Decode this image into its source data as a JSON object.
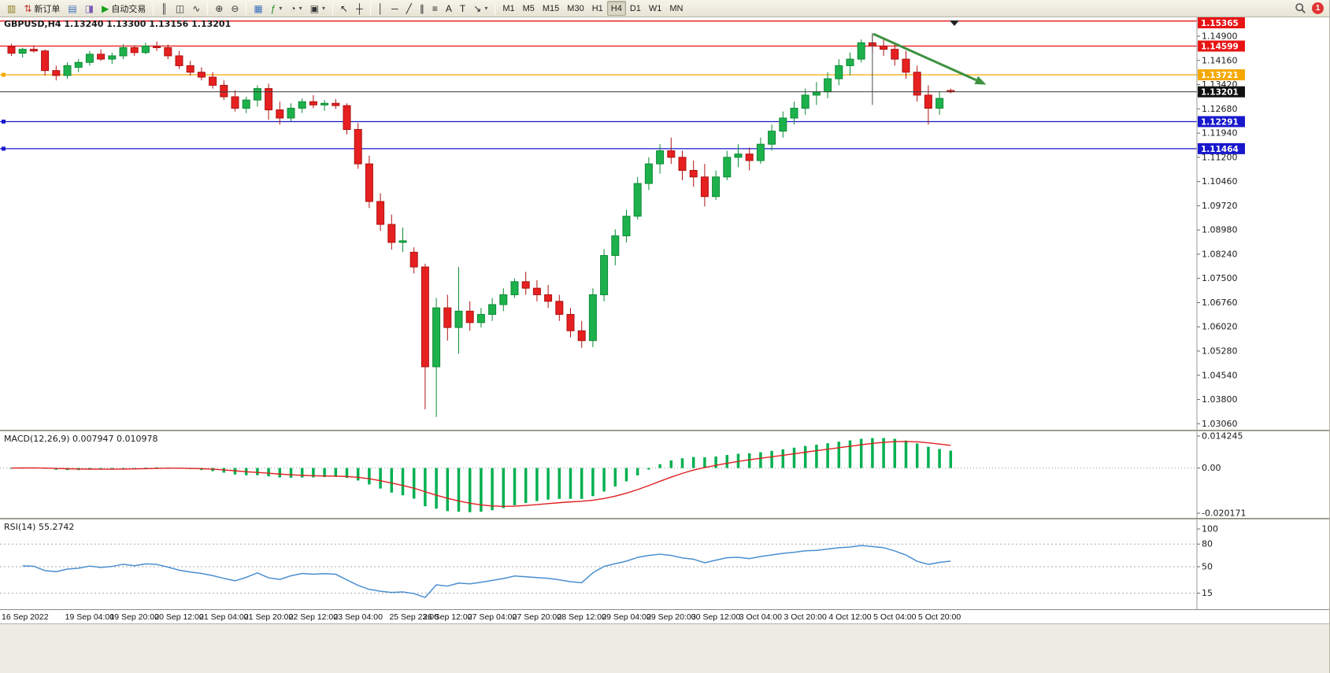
{
  "colors": {
    "candle_up": "#1db14c",
    "candle_up_border": "#0e8a36",
    "candle_down": "#e62020",
    "candle_down_border": "#b01212",
    "hline_red": "#e81414",
    "hline_orange": "#f5a800",
    "hline_blue": "#1818cc",
    "current_price_line": "#3c3c3c",
    "current_price_badge": "#111111",
    "macd_histogram": "#00b050",
    "macd_signal": "#e02020",
    "rsi_line": "#4a8fd0",
    "annotation_arrow": "#3d9140",
    "axis_text": "#1a1a1a"
  },
  "toolbar": {
    "notification_count": "1",
    "groups": [
      {
        "items": [
          {
            "name": "new-chart-button",
            "glyph": "▥",
            "color": "#8f7a1e"
          },
          {
            "name": "new-order-button",
            "glyph": "⇅",
            "color": "#c03030",
            "label": "新订单"
          },
          {
            "name": "profiles-button",
            "glyph": "▤",
            "color": "#3a6fbf"
          },
          {
            "name": "data-window-button",
            "glyph": "◨",
            "color": "#7a5ab0"
          },
          {
            "name": "autotrading-button",
            "glyph": "▶",
            "color": "#18a018",
            "label": "自动交易"
          }
        ]
      },
      {
        "items": [
          {
            "name": "bar-chart-button",
            "glyph": "║",
            "color": "#333333"
          },
          {
            "name": "candlestick-chart-button",
            "glyph": "◫",
            "color": "#333333"
          },
          {
            "name": "line-chart-button",
            "glyph": "∿",
            "color": "#333333"
          }
        ]
      },
      {
        "items": [
          {
            "name": "zoom-in-button",
            "glyph": "⊕",
            "color": "#333333"
          },
          {
            "name": "zoom-out-button",
            "glyph": "⊖",
            "color": "#333333"
          }
        ]
      },
      {
        "items": [
          {
            "name": "tile-windows-button",
            "glyph": "▦",
            "color": "#3a6fbf"
          },
          {
            "name": "indicators-button",
            "glyph": "ƒ",
            "color": "#1a8a1a",
            "caret": true
          },
          {
            "name": "periods-button",
            "glyph": "◔",
            "color": "#333333",
            "caret": true
          },
          {
            "name": "templates-button",
            "glyph": "▣",
            "color": "#333333",
            "caret": true
          }
        ]
      },
      {
        "items": [
          {
            "name": "cursor-button",
            "glyph": "↖",
            "color": "#222222"
          },
          {
            "name": "crosshair-button",
            "glyph": "┼",
            "color": "#222222"
          }
        ]
      },
      {
        "items": [
          {
            "name": "vertical-line-button",
            "glyph": "│",
            "color": "#222222"
          },
          {
            "name": "horizontal-line-button",
            "glyph": "─",
            "color": "#222222"
          },
          {
            "name": "trendline-button",
            "glyph": "╱",
            "color": "#222222"
          },
          {
            "name": "equidistant-channel-button",
            "glyph": "∥",
            "color": "#222222"
          },
          {
            "name": "fibonacci-button",
            "glyph": "≡",
            "color": "#222222"
          },
          {
            "name": "text-button",
            "glyph": "A",
            "color": "#222222"
          },
          {
            "name": "text-label-button",
            "glyph": "T",
            "color": "#222222"
          },
          {
            "name": "arrows-button",
            "glyph": "↘",
            "color": "#222222",
            "caret": true
          }
        ]
      },
      {
        "items": [
          {
            "name": "timeframe-m1-button",
            "label": "M1"
          },
          {
            "name": "timeframe-m5-button",
            "label": "M5"
          },
          {
            "name": "timeframe-m15-button",
            "label": "M15"
          },
          {
            "name": "timeframe-m30-button",
            "label": "M30"
          },
          {
            "name": "timeframe-h1-button",
            "label": "H1"
          },
          {
            "name": "timeframe-h4-button",
            "label": "H4",
            "active": true
          },
          {
            "name": "timeframe-d1-button",
            "label": "D1"
          },
          {
            "name": "timeframe-w1-button",
            "label": "W1"
          },
          {
            "name": "timeframe-mn-button",
            "label": "MN"
          }
        ]
      }
    ]
  },
  "chart": {
    "objects": {
      "horizontal_lines": [
        {
          "label": "1.15365",
          "price": 1.15365,
          "color_key": "hline_red"
        },
        {
          "label": "1.14599",
          "price": 1.14599,
          "color_key": "hline_red"
        },
        {
          "label": "1.13721",
          "price": 1.13721,
          "color_key": "hline_orange",
          "handle": true
        },
        {
          "label": "1.12291",
          "price": 1.12291,
          "color_key": "hline_blue",
          "handle": true
        },
        {
          "label": "1.11464",
          "price": 1.11464,
          "color_key": "hline_blue",
          "handle": true
        }
      ],
      "current_price": {
        "label": "1.13201",
        "price": 1.13201
      },
      "vertical_line": {
        "candle": 77,
        "price_top": 1.15,
        "price_bottom": 1.128
      },
      "arrow": {
        "candle_from": 77.4,
        "price_from": 1.1497,
        "candle_to": 87.5,
        "price_to": 1.1342
      },
      "shift_marker_x": 1212
    }
  },
  "chart_data": [
    {
      "id": "price",
      "type": "candlestick",
      "symbol": "GBPUSD",
      "timeframe": "H4",
      "ohlc_display": "1.13240 1.13300 1.13156 1.13201",
      "ylim": [
        1.029,
        1.1548
      ],
      "y_ticks": [
        "1.14900",
        "1.14160",
        "1.13420",
        "1.12680",
        "1.11940",
        "1.11200",
        "1.10460",
        "1.09720",
        "1.08980",
        "1.08240",
        "1.07500",
        "1.06760",
        "1.06020",
        "1.05280",
        "1.04540",
        "1.03800",
        "1.03060"
      ],
      "x_ticks": [
        {
          "text": "16 Sep 2022",
          "candle": 0
        },
        {
          "text": "19 Sep 04:00",
          "candle": 7
        },
        {
          "text": "19 Sep 20:00",
          "candle": 11
        },
        {
          "text": "20 Sep 12:00",
          "candle": 15
        },
        {
          "text": "21 Sep 04:00",
          "candle": 19
        },
        {
          "text": "21 Sep 20:00",
          "candle": 23
        },
        {
          "text": "22 Sep 12:00",
          "candle": 27
        },
        {
          "text": "23 Sep 04:00",
          "candle": 31
        },
        {
          "text": "25 Sep 23:00",
          "candle": 36
        },
        {
          "text": "26 Sep 12:00",
          "candle": 39
        },
        {
          "text": "27 Sep 04:00",
          "candle": 43
        },
        {
          "text": "27 Sep 20:00",
          "candle": 47
        },
        {
          "text": "28 Sep 12:00",
          "candle": 51
        },
        {
          "text": "29 Sep 04:00",
          "candle": 55
        },
        {
          "text": "29 Sep 20:00",
          "candle": 59
        },
        {
          "text": "30 Sep 12:00",
          "candle": 63
        },
        {
          "text": "3 Oct 04:00",
          "candle": 67
        },
        {
          "text": "3 Oct 20:00",
          "candle": 71
        },
        {
          "text": "4 Oct 12:00",
          "candle": 75
        },
        {
          "text": "5 Oct 04:00",
          "candle": 79
        },
        {
          "text": "5 Oct 20:00",
          "candle": 83
        }
      ],
      "candles": [
        [
          1.1458,
          1.1467,
          1.143,
          1.1438
        ],
        [
          1.1438,
          1.1455,
          1.1425,
          1.145
        ],
        [
          1.145,
          1.1462,
          1.144,
          1.1445
        ],
        [
          1.1445,
          1.145,
          1.137,
          1.1385
        ],
        [
          1.1385,
          1.14,
          1.1355,
          1.137
        ],
        [
          1.137,
          1.141,
          1.136,
          1.14
        ],
        [
          1.1395,
          1.142,
          1.138,
          1.141
        ],
        [
          1.141,
          1.1445,
          1.14,
          1.1435
        ],
        [
          1.1435,
          1.145,
          1.1415,
          1.142
        ],
        [
          1.142,
          1.144,
          1.1405,
          1.143
        ],
        [
          1.143,
          1.1465,
          1.142,
          1.1455
        ],
        [
          1.1455,
          1.1462,
          1.143,
          1.144
        ],
        [
          1.144,
          1.147,
          1.1435,
          1.146
        ],
        [
          1.146,
          1.1474,
          1.1445,
          1.1455
        ],
        [
          1.1455,
          1.1465,
          1.142,
          1.143
        ],
        [
          1.143,
          1.1445,
          1.139,
          1.14
        ],
        [
          1.14,
          1.1415,
          1.137,
          1.138
        ],
        [
          1.138,
          1.1395,
          1.1355,
          1.1365
        ],
        [
          1.1365,
          1.138,
          1.133,
          1.134
        ],
        [
          1.134,
          1.1355,
          1.1295,
          1.1305
        ],
        [
          1.1305,
          1.1325,
          1.126,
          1.127
        ],
        [
          1.127,
          1.1305,
          1.1255,
          1.1295
        ],
        [
          1.1295,
          1.134,
          1.1275,
          1.133
        ],
        [
          1.133,
          1.1345,
          1.1235,
          1.1265
        ],
        [
          1.1265,
          1.129,
          1.122,
          1.124
        ],
        [
          1.124,
          1.1285,
          1.123,
          1.127
        ],
        [
          1.127,
          1.13,
          1.1255,
          1.129
        ],
        [
          1.129,
          1.131,
          1.127,
          1.128
        ],
        [
          1.128,
          1.1295,
          1.1262,
          1.1285
        ],
        [
          1.1285,
          1.1298,
          1.1268,
          1.1278
        ],
        [
          1.1278,
          1.1285,
          1.119,
          1.1205
        ],
        [
          1.1205,
          1.1225,
          1.1085,
          1.11
        ],
        [
          1.11,
          1.1125,
          1.0965,
          1.0985
        ],
        [
          1.0985,
          1.101,
          1.0895,
          1.0915
        ],
        [
          1.0915,
          1.0945,
          1.0838,
          1.086
        ],
        [
          1.086,
          1.0905,
          1.083,
          1.0865
        ],
        [
          1.083,
          1.0845,
          1.0765,
          1.0785
        ],
        [
          1.0785,
          1.0795,
          1.035,
          1.048
        ],
        [
          1.048,
          1.069,
          1.0327,
          1.066
        ],
        [
          1.066,
          1.07,
          1.056,
          1.06
        ],
        [
          1.06,
          1.0785,
          1.052,
          1.065
        ],
        [
          1.065,
          1.068,
          1.059,
          1.0615
        ],
        [
          1.0615,
          1.066,
          1.06,
          1.064
        ],
        [
          1.064,
          1.069,
          1.062,
          1.067
        ],
        [
          1.067,
          1.072,
          1.065,
          1.07
        ],
        [
          1.07,
          1.075,
          1.069,
          1.074
        ],
        [
          1.074,
          1.077,
          1.07,
          1.072
        ],
        [
          1.072,
          1.0745,
          1.068,
          1.07
        ],
        [
          1.07,
          1.073,
          1.066,
          1.068
        ],
        [
          1.068,
          1.07,
          1.062,
          1.064
        ],
        [
          1.064,
          1.066,
          1.057,
          1.059
        ],
        [
          1.059,
          1.062,
          1.0538,
          1.056
        ],
        [
          1.056,
          1.072,
          1.054,
          1.07
        ],
        [
          1.07,
          1.084,
          1.068,
          1.082
        ],
        [
          1.082,
          1.09,
          1.079,
          1.088
        ],
        [
          1.088,
          1.096,
          1.086,
          1.094
        ],
        [
          1.094,
          1.106,
          1.093,
          1.104
        ],
        [
          1.104,
          1.112,
          1.102,
          1.11
        ],
        [
          1.11,
          1.116,
          1.107,
          1.114
        ],
        [
          1.114,
          1.118,
          1.11,
          1.112
        ],
        [
          1.112,
          1.114,
          1.105,
          1.108
        ],
        [
          1.108,
          1.111,
          1.103,
          1.106
        ],
        [
          1.106,
          1.11,
          1.097,
          1.1
        ],
        [
          1.1,
          1.108,
          1.099,
          1.106
        ],
        [
          1.106,
          1.114,
          1.105,
          1.112
        ],
        [
          1.112,
          1.116,
          1.109,
          1.113
        ],
        [
          1.113,
          1.115,
          1.108,
          1.111
        ],
        [
          1.111,
          1.118,
          1.11,
          1.116
        ],
        [
          1.116,
          1.122,
          1.114,
          1.12
        ],
        [
          1.12,
          1.126,
          1.118,
          1.124
        ],
        [
          1.124,
          1.129,
          1.122,
          1.127
        ],
        [
          1.127,
          1.133,
          1.125,
          1.131
        ],
        [
          1.131,
          1.135,
          1.128,
          1.132
        ],
        [
          1.132,
          1.138,
          1.13,
          1.136
        ],
        [
          1.136,
          1.142,
          1.134,
          1.14
        ],
        [
          1.14,
          1.144,
          1.137,
          1.142
        ],
        [
          1.142,
          1.148,
          1.141,
          1.147
        ],
        [
          1.147,
          1.1495,
          1.144,
          1.146
        ],
        [
          1.146,
          1.1485,
          1.143,
          1.145
        ],
        [
          1.145,
          1.147,
          1.14,
          1.142
        ],
        [
          1.142,
          1.1445,
          1.136,
          1.138
        ],
        [
          1.138,
          1.14,
          1.129,
          1.131
        ],
        [
          1.131,
          1.134,
          1.122,
          1.127
        ],
        [
          1.127,
          1.132,
          1.125,
          1.13
        ],
        [
          1.1324,
          1.133,
          1.13156,
          1.13201
        ]
      ]
    },
    {
      "id": "macd",
      "type": "histogram_line",
      "name": "MACD(12,26,9)",
      "values_display": [
        "0.007947",
        "0.010978"
      ],
      "y_ticks": [
        "0.014245",
        "0.00",
        "-0.020171"
      ],
      "ylim": [
        -0.020171,
        0.014245
      ],
      "params": {
        "fast": 12,
        "slow": 26,
        "signal": 9
      },
      "source": "computed from candles"
    },
    {
      "id": "rsi",
      "type": "line",
      "name": "RSI(14)",
      "value_display": "55.2742",
      "period": 14,
      "y_ticks": [
        "100",
        "80",
        "50",
        "15"
      ],
      "levels": [
        80,
        50,
        15
      ],
      "ylim": [
        0,
        100
      ],
      "source": "computed from candles"
    }
  ]
}
